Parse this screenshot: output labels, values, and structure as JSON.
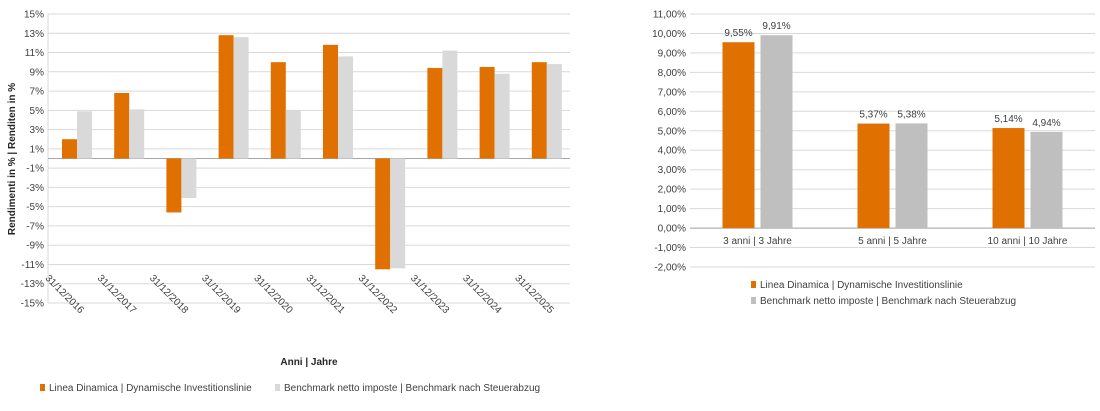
{
  "colors": {
    "series_a": "#E07000",
    "series_b_left": "#D9D9D9",
    "series_b_right": "#BFBFBF",
    "grid": "#D9D9D9",
    "axis": "#A6A6A6"
  },
  "chart_data": [
    {
      "type": "bar",
      "title": "",
      "xlabel": "Anni | Jahre",
      "ylabel": "Rendimenti in % | Renditen in %",
      "categories": [
        "31/12/2016",
        "31/12/2017",
        "31/12/2018",
        "31/12/2019",
        "31/12/2020",
        "31/12/2021",
        "31/12/2022",
        "31/12/2023",
        "31/12/2024",
        "31/12/2025"
      ],
      "series": [
        {
          "name": "Linea Dinamica | Dynamische Investitionslinie",
          "values": [
            2.0,
            6.8,
            -5.6,
            12.8,
            10.0,
            11.8,
            -11.5,
            9.4,
            9.5,
            10.0
          ]
        },
        {
          "name": "Benchmark netto imposte | Benchmark nach Steuerabzug",
          "values": [
            4.9,
            5.1,
            -4.1,
            12.6,
            5.0,
            10.6,
            -11.4,
            11.2,
            8.8,
            9.8
          ]
        }
      ],
      "ylim": [
        -15,
        15
      ],
      "yticks": [
        "15%",
        "13%",
        "11%",
        "9%",
        "7%",
        "5%",
        "3%",
        "1%",
        "-1%",
        "-3%",
        "-5%",
        "-7%",
        "-9%",
        "-11%",
        "-13%",
        "-15%"
      ],
      "grid": true,
      "legend_position": "bottom"
    },
    {
      "type": "bar",
      "title": "",
      "xlabel": "",
      "ylabel": "",
      "categories": [
        "3 anni | 3 Jahre",
        "5 anni | 5 Jahre",
        "10 anni | 10 Jahre"
      ],
      "series": [
        {
          "name": "Linea Dinamica | Dynamische Investitionslinie",
          "values": [
            9.55,
            5.37,
            5.14
          ],
          "labels": [
            "9,55%",
            "5,37%",
            "5,14%"
          ]
        },
        {
          "name": "Benchmark netto imposte | Benchmark nach Steuerabzug",
          "values": [
            9.91,
            5.38,
            4.94
          ],
          "labels": [
            "9,91%",
            "5,38%",
            "4,94%"
          ]
        }
      ],
      "ylim": [
        -2,
        11
      ],
      "yticks": [
        "11,00%",
        "10,00%",
        "9,00%",
        "8,00%",
        "7,00%",
        "6,00%",
        "5,00%",
        "4,00%",
        "3,00%",
        "2,00%",
        "1,00%",
        "0,00%",
        "-1,00%",
        "-2,00%"
      ],
      "grid": true,
      "legend_position": "bottom"
    }
  ]
}
